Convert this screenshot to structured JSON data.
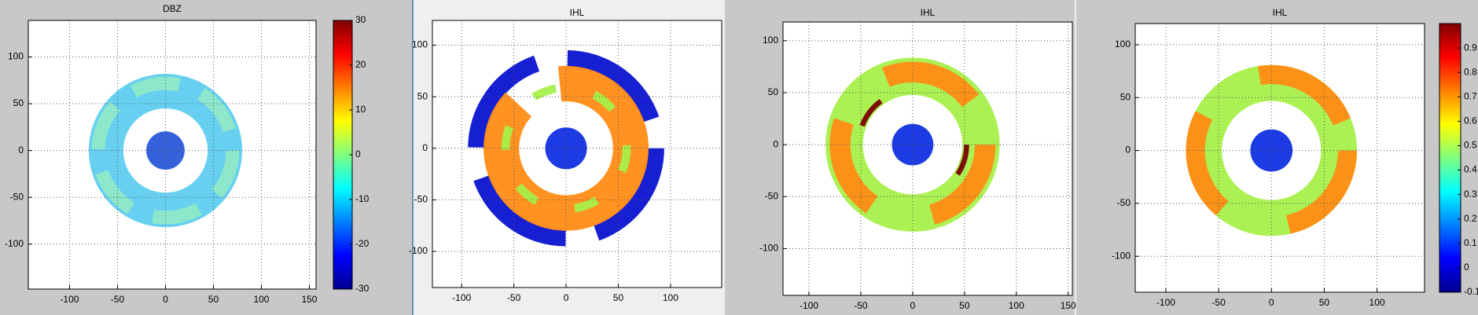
{
  "chart_data": [
    {
      "type": "image",
      "title": "DBZ",
      "xlim": [
        -143,
        157
      ],
      "ylim": [
        -148,
        139
      ],
      "xticks": [
        -100,
        -50,
        0,
        50,
        100,
        150
      ],
      "yticks": [
        -100,
        -50,
        0,
        50,
        100
      ],
      "grid": true,
      "colorbar": {
        "clim": [
          -30,
          30
        ],
        "ticks": [
          30,
          20,
          10,
          0,
          -10,
          -20,
          -30
        ]
      }
    },
    {
      "type": "image",
      "title": "IHL",
      "xlim": [
        -128,
        149
      ],
      "ylim": [
        -135,
        124
      ],
      "xticks": [
        -100,
        -50,
        0,
        50,
        100
      ],
      "yticks": [
        -100,
        -50,
        0,
        50,
        100
      ],
      "grid": true
    },
    {
      "type": "image",
      "title": "IHL",
      "xlim": [
        -125,
        154
      ],
      "ylim": [
        -145,
        118
      ],
      "xticks": [
        -100,
        -50,
        0,
        50,
        100,
        150
      ],
      "yticks": [
        -100,
        -50,
        0,
        50,
        100
      ],
      "grid": true
    },
    {
      "type": "image",
      "title": "IHL",
      "xlim": [
        -129,
        145
      ],
      "ylim": [
        -134,
        120
      ],
      "xticks": [
        -100,
        -50,
        0,
        50,
        100
      ],
      "yticks": [
        -100,
        -50,
        0,
        50,
        100
      ],
      "grid": true,
      "colorbar": {
        "clim": [
          -0.1,
          1.0
        ],
        "ticks": [
          0.9,
          0.8,
          0.7,
          0.6,
          0.5,
          0.4,
          0.3,
          0.2,
          0.1,
          0,
          -0.1
        ]
      }
    }
  ]
}
